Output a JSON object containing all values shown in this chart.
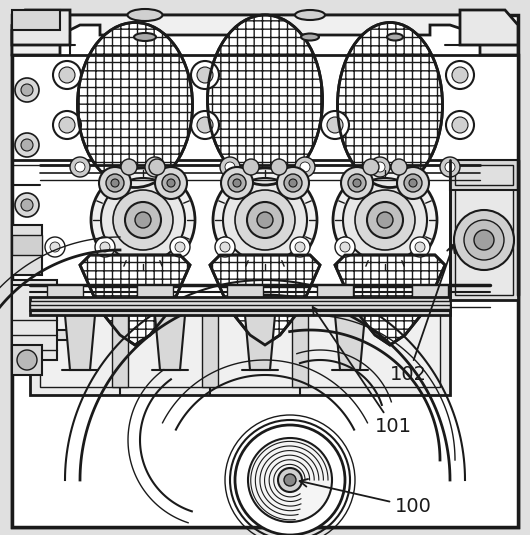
{
  "bg_color": "#e8e8e8",
  "inner_bg": "#f5f5f5",
  "line_color": "#1a1a1a",
  "dark_fill": "#2a2a2a",
  "mid_fill": "#888888",
  "light_fill": "#d0d0d0",
  "white_fill": "#ffffff",
  "label_100": "100",
  "label_101": "101",
  "label_102": "102",
  "font_size": 14,
  "fig_width": 5.3,
  "fig_height": 5.35,
  "dpi": 100
}
